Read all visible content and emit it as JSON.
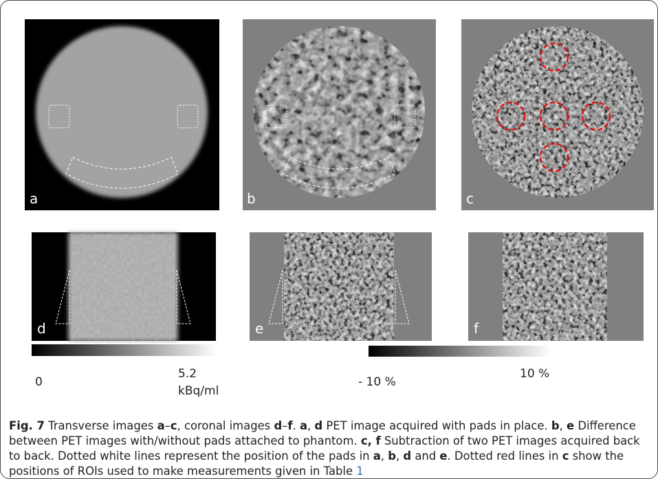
{
  "figure": {
    "panels": [
      "a",
      "b",
      "c",
      "d",
      "e",
      "f"
    ],
    "colorbars": [
      {
        "min_label": "0",
        "max_label": "5.2",
        "unit": "kBq/ml"
      },
      {
        "min_label": "- 10 %",
        "max_label": "10 %"
      }
    ],
    "caption": [
      {
        "text": "Fig. 7",
        "bold": true
      },
      {
        "text": " Transverse images "
      },
      {
        "text": "a",
        "bold": true
      },
      {
        "text": "–"
      },
      {
        "text": "c",
        "bold": true
      },
      {
        "text": ", coronal images "
      },
      {
        "text": "d",
        "bold": true
      },
      {
        "text": "–"
      },
      {
        "text": "f",
        "bold": true
      },
      {
        "text": ". "
      },
      {
        "text": "a",
        "bold": true
      },
      {
        "text": ", "
      },
      {
        "text": "d",
        "bold": true
      },
      {
        "text": " PET image acquired with pads in place. "
      },
      {
        "text": "b",
        "bold": true
      },
      {
        "text": ", "
      },
      {
        "text": "e",
        "bold": true
      },
      {
        "text": " Difference between PET images with/without pads attached to phantom. "
      },
      {
        "text": "c, f",
        "bold": true
      },
      {
        "text": " Subtraction of two PET images acquired back to back. Dotted white lines represent the position of the pads in "
      },
      {
        "text": "a",
        "bold": true
      },
      {
        "text": ", "
      },
      {
        "text": "b",
        "bold": true
      },
      {
        "text": ", "
      },
      {
        "text": "d",
        "bold": true
      },
      {
        "text": " and "
      },
      {
        "text": "e",
        "bold": true
      },
      {
        "text": ". Dotted red lines in "
      },
      {
        "text": "c",
        "bold": true
      },
      {
        "text": " show the positions of ROIs used to make measurements given in Table "
      },
      {
        "text": "1",
        "link": true
      }
    ]
  }
}
